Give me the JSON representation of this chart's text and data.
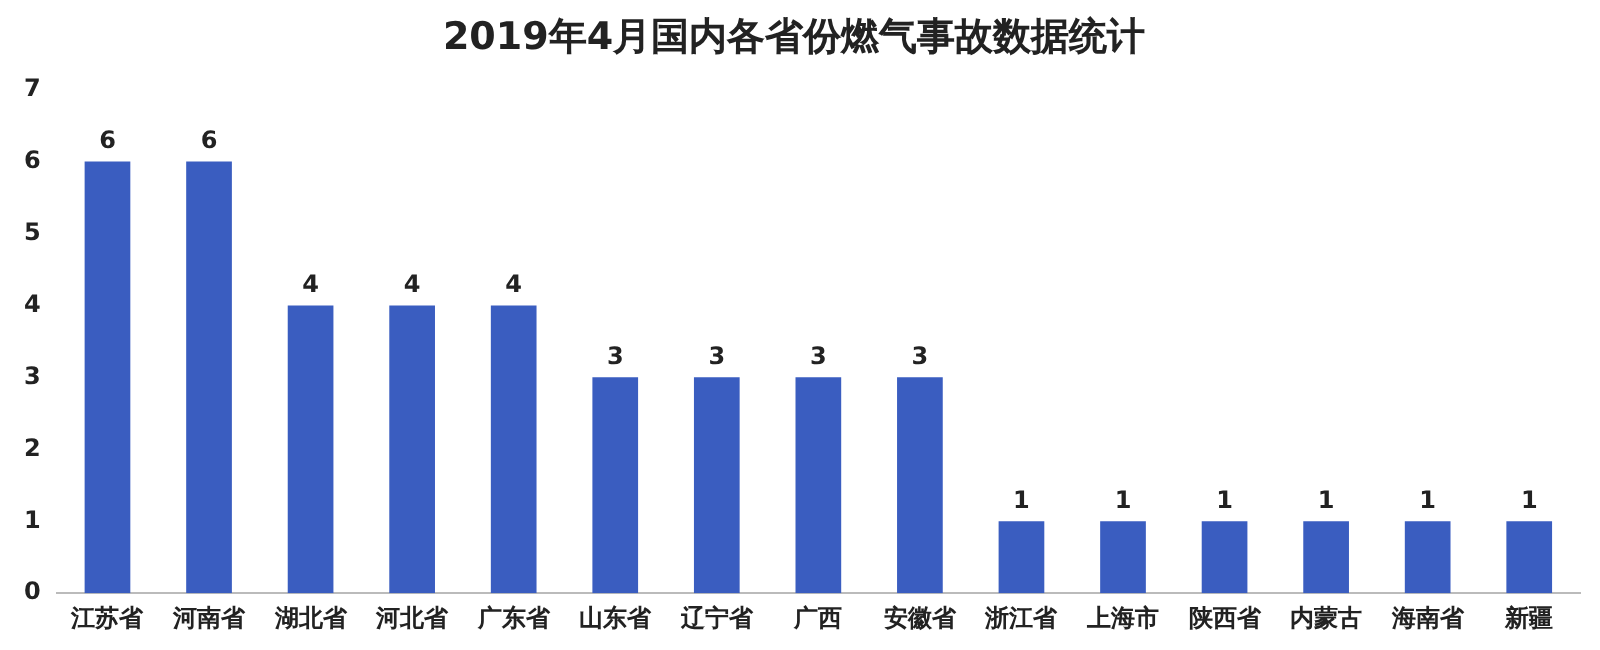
{
  "chart_data": {
    "type": "bar",
    "title": "2019年4月国内各省份燃气事故数据统计",
    "categories": [
      "江苏省",
      "河南省",
      "湖北省",
      "河北省",
      "广东省",
      "山东省",
      "辽宁省",
      "广西",
      "安徽省",
      "浙江省",
      "上海市",
      "陕西省",
      "内蒙古",
      "海南省",
      "新疆"
    ],
    "values": [
      6,
      6,
      4,
      4,
      4,
      3,
      3,
      3,
      3,
      1,
      1,
      1,
      1,
      1,
      1
    ],
    "color": "#3a5dc0",
    "ylim": [
      0,
      7
    ],
    "yticks": [
      0,
      1,
      2,
      3,
      4,
      5,
      6,
      7
    ],
    "grid": false,
    "data_labels": true,
    "legend": false
  }
}
